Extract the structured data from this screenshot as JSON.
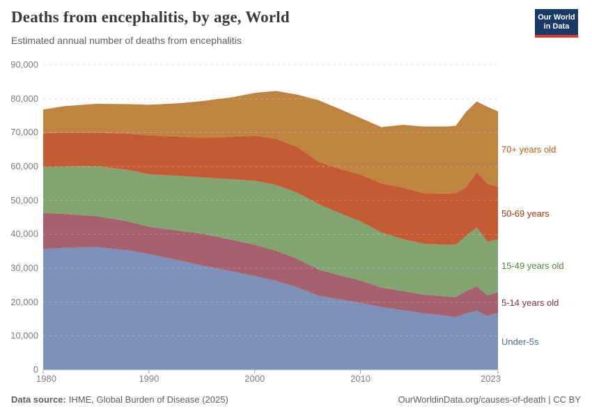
{
  "header": {
    "title": "Deaths from encephalitis, by age, World",
    "subtitle": "Estimated annual number of deaths from encephalitis",
    "logo": {
      "line1": "Our World",
      "line2": "in Data"
    }
  },
  "brand": {
    "navy": "#1a3a66",
    "red": "#d73a35"
  },
  "chart_data": {
    "type": "area",
    "stacked": true,
    "title": "Deaths from encephalitis, by age, World",
    "xlabel": "",
    "ylabel": "",
    "unit": "deaths",
    "ylim": [
      0,
      90000
    ],
    "yticks": [
      0,
      10000,
      20000,
      30000,
      40000,
      50000,
      60000,
      70000,
      80000,
      90000
    ],
    "xticks": [
      1980,
      1990,
      2000,
      2010,
      2023
    ],
    "grid": "horizontal dashed",
    "legend_position": "right, colored labels beside bands",
    "x": [
      1980,
      1982,
      1985,
      1988,
      1990,
      1993,
      1995,
      1998,
      2000,
      2002,
      2004,
      2006,
      2008,
      2010,
      2012,
      2014,
      2016,
      2018,
      2019,
      2020,
      2021,
      2022,
      2023
    ],
    "series": [
      {
        "id": "under-5s",
        "name": "Under-5s",
        "color": "#7c90b8",
        "label_color": "#4c6a9c",
        "legend_y": 483,
        "values": [
          35700,
          36000,
          36200,
          35300,
          34200,
          32200,
          30800,
          29000,
          27700,
          26300,
          24400,
          21900,
          20800,
          19800,
          18500,
          17600,
          16700,
          16000,
          15600,
          16700,
          17400,
          15900,
          16800
        ]
      },
      {
        "id": "5-14-years-old",
        "name": "5-14 years old",
        "color": "#a5616c",
        "label_color": "#883039",
        "legend_y": 427,
        "values": [
          10600,
          10000,
          9200,
          8500,
          8000,
          8800,
          9400,
          9300,
          9200,
          8900,
          8400,
          7800,
          7100,
          6600,
          5800,
          5700,
          5500,
          5700,
          5900,
          6600,
          7200,
          6100,
          6200
        ]
      },
      {
        "id": "15-49-years-old",
        "name": "15-49 years old",
        "color": "#81a471",
        "label_color": "#578145",
        "legend_y": 374,
        "values": [
          13500,
          14000,
          14700,
          15200,
          15500,
          16200,
          16600,
          17900,
          18900,
          19400,
          19500,
          19300,
          18400,
          17400,
          16200,
          15300,
          15000,
          15200,
          15400,
          16300,
          17400,
          15900,
          15500
        ]
      },
      {
        "id": "50-69-years",
        "name": "50-69 years",
        "color": "#c55b35",
        "label_color": "#b13507",
        "legend_y": 299,
        "values": [
          10000,
          10000,
          9900,
          10700,
          11500,
          11600,
          11700,
          12600,
          13300,
          13600,
          13500,
          12500,
          13100,
          13800,
          14500,
          15200,
          14900,
          15100,
          15200,
          14300,
          16300,
          17000,
          15500
        ]
      },
      {
        "id": "70-plus-years-old",
        "name": "70+ years old",
        "color": "#bf8540",
        "label_color": "#be5915",
        "legend_y": 207,
        "values": [
          7000,
          7800,
          8500,
          8700,
          9000,
          9900,
          10800,
          11700,
          12600,
          14100,
          15400,
          18100,
          17600,
          16700,
          16600,
          18500,
          19700,
          19800,
          19900,
          22300,
          20900,
          22700,
          22300
        ]
      }
    ]
  },
  "footer": {
    "source_label": "Data source:",
    "source_text": "IHME, Global Burden of Disease (2025)",
    "credit": "OurWorldinData.org/causes-of-death | CC BY"
  }
}
